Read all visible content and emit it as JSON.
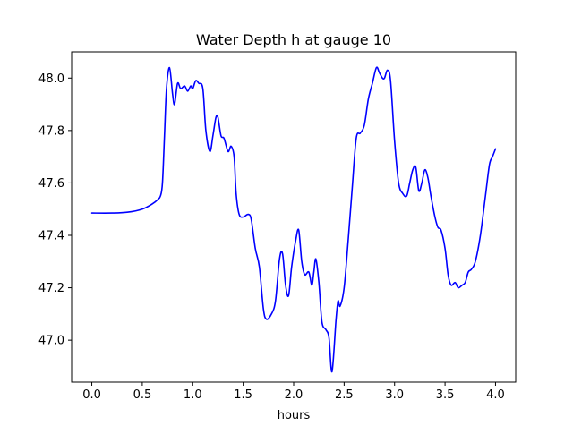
{
  "chart_data": {
    "type": "line",
    "title": "Water Depth h at gauge 10",
    "xlabel": "hours",
    "ylabel": "",
    "xlim": [
      -0.2,
      4.2
    ],
    "ylim": [
      46.84,
      48.1
    ],
    "xticks": [
      0.0,
      0.5,
      1.0,
      1.5,
      2.0,
      2.5,
      3.0,
      3.5,
      4.0
    ],
    "xtick_labels": [
      "0.0",
      "0.5",
      "1.0",
      "1.5",
      "2.0",
      "2.5",
      "3.0",
      "3.5",
      "4.0"
    ],
    "yticks": [
      47.0,
      47.2,
      47.4,
      47.6,
      47.8,
      48.0
    ],
    "ytick_labels": [
      "47.0",
      "47.2",
      "47.4",
      "47.6",
      "47.8",
      "48.0"
    ],
    "grid": false,
    "legend": "none",
    "series": [
      {
        "color": "#0000ff",
        "x": [
          0.0,
          0.2,
          0.35,
          0.5,
          0.6,
          0.65,
          0.68,
          0.7,
          0.72,
          0.74,
          0.77,
          0.8,
          0.82,
          0.85,
          0.88,
          0.92,
          0.95,
          0.98,
          1.0,
          1.03,
          1.06,
          1.1,
          1.13,
          1.17,
          1.2,
          1.23,
          1.25,
          1.28,
          1.31,
          1.35,
          1.38,
          1.41,
          1.43,
          1.46,
          1.5,
          1.55,
          1.58,
          1.62,
          1.66,
          1.7,
          1.73,
          1.78,
          1.82,
          1.86,
          1.89,
          1.92,
          1.95,
          1.98,
          2.02,
          2.05,
          2.08,
          2.11,
          2.15,
          2.18,
          2.2,
          2.22,
          2.25,
          2.28,
          2.32,
          2.35,
          2.38,
          2.42,
          2.44,
          2.46,
          2.5,
          2.54,
          2.58,
          2.62,
          2.66,
          2.7,
          2.74,
          2.78,
          2.82,
          2.85,
          2.88,
          2.9,
          2.93,
          2.96,
          3.0,
          3.04,
          3.08,
          3.12,
          3.15,
          3.18,
          3.21,
          3.24,
          3.27,
          3.3,
          3.33,
          3.36,
          3.4,
          3.43,
          3.46,
          3.5,
          3.53,
          3.56,
          3.6,
          3.63,
          3.67,
          3.7,
          3.73,
          3.76,
          3.8,
          3.85,
          3.9,
          3.94,
          3.97,
          4.0
        ],
        "y": [
          47.485,
          47.485,
          47.488,
          47.5,
          47.52,
          47.535,
          47.55,
          47.6,
          47.78,
          47.96,
          48.04,
          47.94,
          47.9,
          47.98,
          47.96,
          47.97,
          47.95,
          47.97,
          47.96,
          47.99,
          47.98,
          47.96,
          47.8,
          47.72,
          47.78,
          47.85,
          47.85,
          47.78,
          47.77,
          47.72,
          47.74,
          47.7,
          47.56,
          47.48,
          47.47,
          47.48,
          47.46,
          47.35,
          47.28,
          47.12,
          47.08,
          47.1,
          47.15,
          47.31,
          47.33,
          47.21,
          47.17,
          47.28,
          47.38,
          47.42,
          47.3,
          47.25,
          47.26,
          47.21,
          47.26,
          47.31,
          47.22,
          47.07,
          47.04,
          47.01,
          46.88,
          47.08,
          47.15,
          47.13,
          47.2,
          47.38,
          47.58,
          47.77,
          47.79,
          47.82,
          47.92,
          47.98,
          48.04,
          48.02,
          48.0,
          48.0,
          48.03,
          47.99,
          47.76,
          47.6,
          47.56,
          47.55,
          47.6,
          47.65,
          47.66,
          47.57,
          47.6,
          47.65,
          47.62,
          47.55,
          47.47,
          47.43,
          47.42,
          47.35,
          47.25,
          47.21,
          47.22,
          47.2,
          47.21,
          47.22,
          47.26,
          47.27,
          47.3,
          47.4,
          47.55,
          47.67,
          47.7,
          47.73
        ]
      }
    ]
  }
}
